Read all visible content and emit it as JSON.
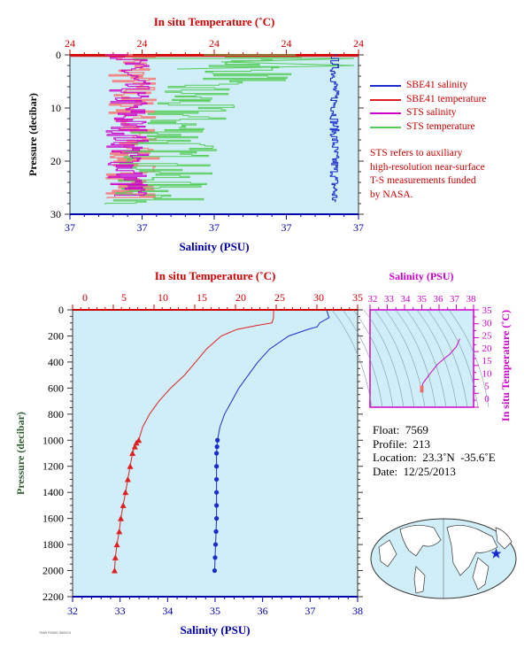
{
  "colors": {
    "panel_bg": "#cfeef8",
    "temperature": "#e02020",
    "salinity": "#1a2ccc",
    "sts_salinity": "#cc00cc",
    "sts_temperature": "#55cc55",
    "sts_temperature_top": "#f08888",
    "axis_temp": "#cc0000",
    "axis_sal": "#0000aa",
    "pressure_label": "#2e5a2e",
    "ts_axis": "#cc00cc"
  },
  "top_chart": {
    "top_axis_title": "In situ Temperature (˚C)",
    "top_ticks": [
      "24",
      "24",
      "24",
      "24",
      "24"
    ],
    "bottom_axis_title": "Salinity (PSU)",
    "bottom_ticks": [
      "37",
      "37",
      "37",
      "37",
      "37"
    ],
    "y_axis_title": "Pressure (decibar)",
    "y_ticks": [
      "0",
      "10",
      "20",
      "30"
    ]
  },
  "legend": [
    {
      "label": "SBE41 salinity",
      "color": "#1a2ccc"
    },
    {
      "label": "SBE41 temperature",
      "color": "#e02020"
    },
    {
      "label": "STS salinity",
      "color": "#cc00cc"
    },
    {
      "label": "STS temperature",
      "color": "#55cc55"
    }
  ],
  "note_lines": [
    "STS refers to auxiliary",
    "high-resolution near-surface",
    "T-S measurements funded",
    "by NASA."
  ],
  "bottom_chart": {
    "top_axis_title": "In situ Temperature (˚C)",
    "top_ticks": [
      "0",
      "5",
      "10",
      "15",
      "20",
      "25",
      "30",
      "35"
    ],
    "bottom_axis_title": "Salinity (PSU)",
    "bottom_ticks": [
      "32",
      "33",
      "34",
      "35",
      "36",
      "37",
      "38"
    ],
    "y_axis_title": "Pressure (decibar)",
    "y_ticks": [
      "0",
      "200",
      "400",
      "600",
      "800",
      "1000",
      "1200",
      "1400",
      "1600",
      "1800",
      "2000",
      "2200"
    ]
  },
  "ts_chart": {
    "top_axis_title": "Salinity (PSU)",
    "top_ticks": [
      "32",
      "33",
      "34",
      "35",
      "36",
      "37",
      "38"
    ],
    "right_axis_title": "In situ Temperature (˚C)",
    "right_ticks": [
      "0",
      "5",
      "10",
      "15",
      "20",
      "25",
      "30",
      "35"
    ]
  },
  "info": {
    "float": "Float:  7569",
    "profile": "Profile:  213",
    "location": "Location:  23.3˚N  -35.6˚E",
    "date": "Date:  12/25/2013"
  },
  "footer_code": "7569 P0000 000574",
  "chart_data": [
    {
      "type": "line",
      "title": "",
      "xlabel": "Salinity (PSU)",
      "x2label": "In situ Temperature (˚C)",
      "ylabel": "Pressure (decibar)",
      "xlim": [
        32,
        38
      ],
      "x2lim": [
        0,
        35
      ],
      "ylim": [
        2200,
        0
      ],
      "series": [
        {
          "name": "SBE41 temperature",
          "axis": "temperature",
          "pressure": [
            5,
            60,
            100,
            120,
            150,
            200,
            300,
            400,
            500,
            600,
            700,
            800,
            900,
            1000,
            1020,
            1050,
            1100,
            1200,
            1300,
            1400,
            1500,
            1600,
            1700,
            1800,
            1900,
            2000
          ],
          "values": [
            24.2,
            24.2,
            24.0,
            22.0,
            19.5,
            17.5,
            15.6,
            14.2,
            12.8,
            11.0,
            9.5,
            8.3,
            7.4,
            6.9,
            6.6,
            6.4,
            6.1,
            5.8,
            5.5,
            5.2,
            4.9,
            4.6,
            4.4,
            4.1,
            3.9,
            3.8
          ]
        },
        {
          "name": "SBE41 salinity",
          "axis": "salinity",
          "pressure": [
            5,
            60,
            100,
            130,
            150,
            200,
            300,
            400,
            500,
            600,
            700,
            800,
            900,
            1000,
            1050,
            1100,
            1200,
            1300,
            1400,
            1500,
            1600,
            1700,
            1800,
            1900,
            2000
          ],
          "values": [
            37.35,
            37.4,
            37.2,
            37.15,
            36.95,
            36.55,
            36.15,
            35.9,
            35.7,
            35.5,
            35.35,
            35.2,
            35.1,
            35.05,
            35.04,
            35.03,
            35.03,
            35.03,
            35.03,
            35.03,
            35.03,
            35.02,
            35.01,
            35.0,
            34.99
          ]
        }
      ]
    },
    {
      "type": "line",
      "title": "",
      "xlabel": "Salinity (PSU)",
      "ylabel": "In situ Temperature (˚C)",
      "xlim": [
        32,
        38
      ],
      "ylim": [
        -2,
        35
      ],
      "series": [
        {
          "name": "T-S",
          "salinity": [
            34.99,
            35.01,
            35.03,
            35.05,
            35.2,
            35.5,
            35.9,
            36.3,
            36.6,
            37.0,
            37.2
          ],
          "temperature": [
            3.8,
            4.4,
            5.5,
            6.9,
            8.3,
            11.0,
            14.2,
            16.5,
            18.0,
            21.0,
            24.0
          ]
        }
      ]
    }
  ]
}
